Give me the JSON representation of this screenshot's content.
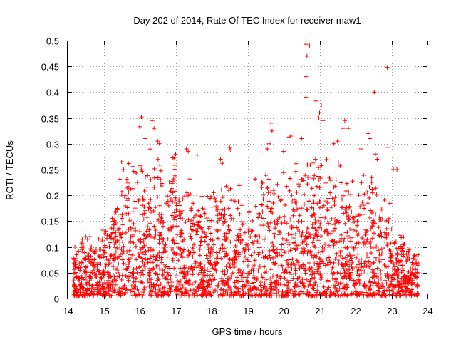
{
  "chart_data": {
    "type": "scatter",
    "title": "Day 202 of 2014, Rate Of TEC Index for receiver maw1",
    "xlabel": "GPS time / hours",
    "ylabel": "ROTI / TECUs",
    "xlim": [
      14,
      24
    ],
    "ylim": [
      0,
      0.5
    ],
    "xticks": [
      "14",
      "15",
      "16",
      "17",
      "18",
      "19",
      "20",
      "21",
      "22",
      "23",
      "24"
    ],
    "yticks": [
      "0",
      "0.05",
      "0.1",
      "0.15",
      "0.2",
      "0.25",
      "0.3",
      "0.35",
      "0.4",
      "0.45",
      "0.5"
    ],
    "grid": true,
    "marker": "+",
    "color": "#ff0000",
    "series": [
      {
        "name": "ROTI",
        "points": [
          [
            20.62,
            0.493
          ],
          [
            20.72,
            0.49
          ],
          [
            20.65,
            0.47
          ],
          [
            20.62,
            0.43
          ],
          [
            22.88,
            0.448
          ],
          [
            22.52,
            0.4
          ],
          [
            20.62,
            0.39
          ],
          [
            20.9,
            0.383
          ],
          [
            21.05,
            0.375
          ],
          [
            21.0,
            0.36
          ],
          [
            20.98,
            0.35
          ],
          [
            21.1,
            0.345
          ],
          [
            16.05,
            0.352
          ],
          [
            16.0,
            0.333
          ],
          [
            16.35,
            0.345
          ],
          [
            16.4,
            0.33
          ],
          [
            19.65,
            0.34
          ],
          [
            19.68,
            0.325
          ],
          [
            21.7,
            0.345
          ],
          [
            21.65,
            0.33
          ],
          [
            22.35,
            0.32
          ],
          [
            22.4,
            0.31
          ],
          [
            20.2,
            0.315
          ],
          [
            20.15,
            0.313
          ],
          [
            22.9,
            0.293
          ],
          [
            18.5,
            0.293
          ],
          [
            18.52,
            0.288
          ],
          [
            17.3,
            0.29
          ],
          [
            17.35,
            0.285
          ],
          [
            16.5,
            0.305
          ],
          [
            16.55,
            0.3
          ],
          [
            16.15,
            0.31
          ],
          [
            21.5,
            0.305
          ],
          [
            21.4,
            0.3
          ],
          [
            21.8,
            0.33
          ],
          [
            20.5,
            0.31
          ],
          [
            17.0,
            0.28
          ],
          [
            16.95,
            0.272
          ],
          [
            17.6,
            0.278
          ],
          [
            18.25,
            0.27
          ],
          [
            18.3,
            0.262
          ],
          [
            19.6,
            0.3
          ],
          [
            19.55,
            0.29
          ],
          [
            20.0,
            0.285
          ],
          [
            22.15,
            0.29
          ],
          [
            22.55,
            0.28
          ],
          [
            22.6,
            0.27
          ],
          [
            23.05,
            0.25
          ],
          [
            23.15,
            0.25
          ],
          [
            15.5,
            0.265
          ],
          [
            15.55,
            0.25
          ],
          [
            14.2,
            0.1
          ],
          [
            14.3,
            0.092
          ],
          [
            14.25,
            0.085
          ],
          [
            14.5,
            0.12
          ],
          [
            14.55,
            0.115
          ],
          [
            14.4,
            0.095
          ],
          [
            14.2,
            0.07
          ],
          [
            14.22,
            0.05
          ],
          [
            14.3,
            0.04
          ]
        ]
      }
    ]
  }
}
